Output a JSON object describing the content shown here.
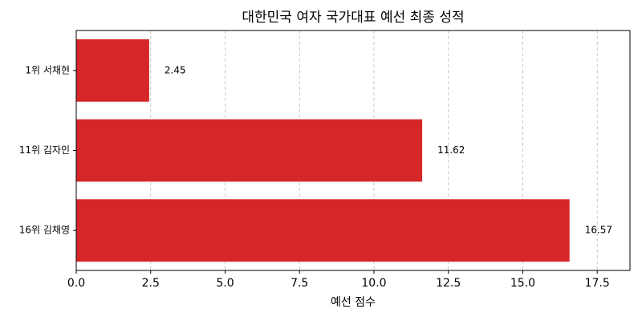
{
  "chart_data": {
    "type": "barh",
    "title": "대한민국 여자 국가대표 예선 최종 성적",
    "x_label": "예선 점수",
    "categories": [
      "1위 서채현",
      "11위 김자인",
      "16위 김채영"
    ],
    "values": [
      2.45,
      11.62,
      16.57
    ],
    "color": "#d62728",
    "xlim": [
      0,
      18.6
    ],
    "xticks": [
      {
        "value": 0,
        "label": "0.0"
      },
      {
        "value": 2.5,
        "label": "2.5"
      },
      {
        "value": 5,
        "label": "5.0"
      },
      {
        "value": 7.5,
        "label": "7.5"
      },
      {
        "value": 10,
        "label": "10.0"
      },
      {
        "value": 12.5,
        "label": "12.5"
      },
      {
        "value": 15,
        "label": "15.0"
      },
      {
        "value": 17.5,
        "label": "17.5"
      }
    ],
    "grid": true
  }
}
